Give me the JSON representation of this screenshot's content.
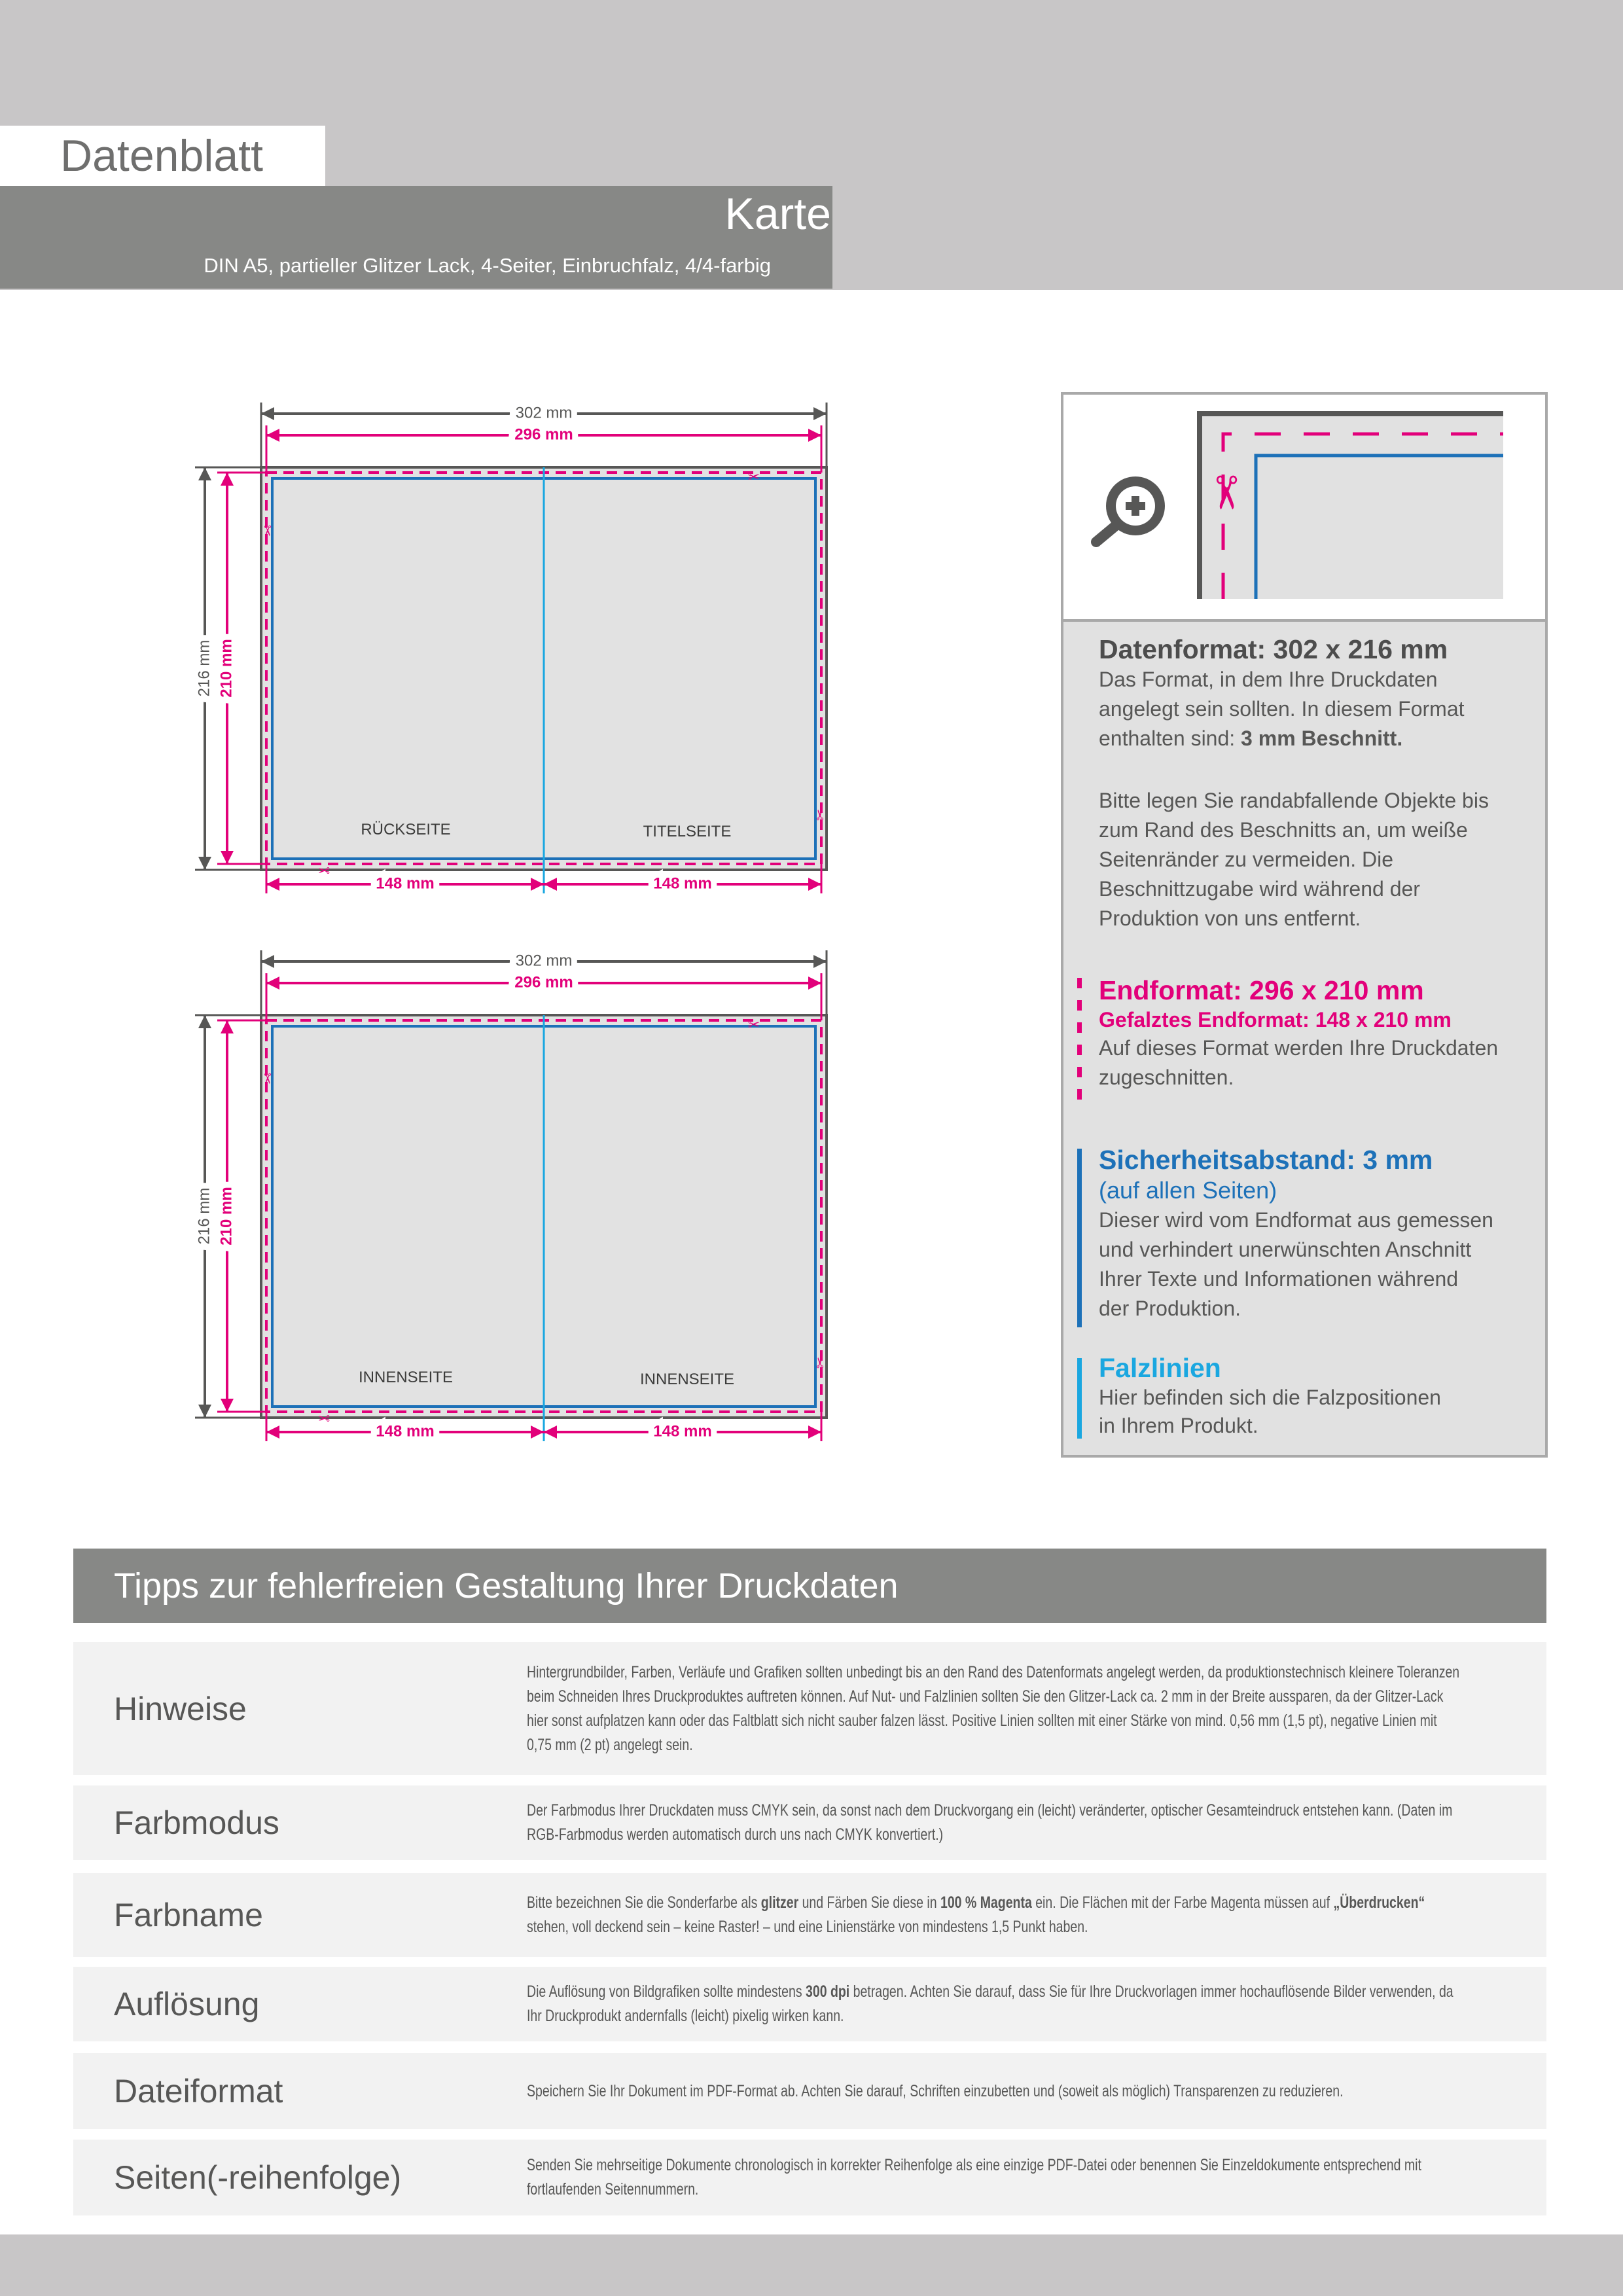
{
  "header": {
    "title": "Datenblatt",
    "product": "Karte",
    "subtitle": "DIN A5, partieller Glitzer Lack, 4-Seiter, Einbruchfalz, 4/4-farbig"
  },
  "colors": {
    "magenta": "#e2007a",
    "blue": "#1d71b8",
    "cyan": "#1aa7e0",
    "gray": "#575756",
    "band": "#878886"
  },
  "diagrams": [
    {
      "data_width": "302 mm",
      "end_width": "296 mm",
      "data_height": "216 mm",
      "end_height": "210 mm",
      "half_widths": [
        "148 mm",
        "148 mm"
      ],
      "pages": [
        "RÜCKSEITE",
        "TITELSEITE"
      ]
    },
    {
      "data_width": "302 mm",
      "end_width": "296 mm",
      "data_height": "216 mm",
      "end_height": "210 mm",
      "half_widths": [
        "148 mm",
        "148 mm"
      ],
      "pages": [
        "INNENSEITE",
        "INNENSEITE"
      ]
    }
  ],
  "info_panel": {
    "icons": [
      "zoom-in-icon",
      "scissors-icon"
    ],
    "datenformat": {
      "heading": "Datenformat: 302 x 216 mm",
      "lines": [
        "Das Format, in dem Ihre Druckdaten",
        "angelegt sein sollten. In diesem Format"
      ],
      "last_line_prefix": "enthalten sind: ",
      "last_line_bold": "3 mm Beschnitt.",
      "bleed_lines": [
        "Bitte legen Sie randabfallende Objekte bis",
        "zum Rand des Beschnitts an, um weiße",
        "Seitenränder zu vermeiden. Die",
        "Beschnittzugabe wird während der",
        "Produktion von uns entfernt."
      ]
    },
    "endformat": {
      "heading": "Endformat: 296 x 210 mm",
      "subheading": "Gefalztes Endformat: 148 x 210 mm",
      "lines": [
        "Auf dieses Format werden Ihre Druckdaten",
        "zugeschnitten."
      ]
    },
    "sicherheit": {
      "heading": "Sicherheitsabstand: 3 mm",
      "subheading": "(auf allen Seiten)",
      "lines": [
        "Dieser wird vom Endformat aus gemessen",
        "und verhindert unerwünschten Anschnitt",
        "Ihrer Texte und Informationen während",
        "der Produktion."
      ]
    },
    "falz": {
      "heading": "Falzlinien",
      "lines": [
        "Hier befinden sich die Falzpositionen",
        "in Ihrem Produkt."
      ]
    }
  },
  "tips": {
    "title": "Tipps zur fehlerfreien Gestaltung Ihrer Druckdaten",
    "rows": [
      {
        "label": "Hinweise",
        "body": [
          {
            "t": "Hintergrundbilder, Farben, Verläufe und Grafiken sollten unbedingt bis an den Rand des Datenformats angelegt werden, da produktionstechnisch kleinere Toleranzen beim Schneiden Ihres Druckproduktes auftreten können. Auf Nut- und Falzlinien sollten Sie den Glitzer-Lack ca. 2 mm in der Breite aussparen, da der Glitzer-Lack hier sonst aufplatzen kann oder das Faltblatt sich nicht sauber falzen lässt. Positive Linien sollten mit einer Stärke von mind. 0,56 mm (1,5 pt), negative Linien mit 0,75 mm (2 pt) angelegt sein."
          }
        ]
      },
      {
        "label": "Farbmodus",
        "body": [
          {
            "t": "Der Farbmodus Ihrer Druckdaten muss CMYK sein, da sonst nach dem Druckvorgang ein (leicht) veränderter, optischer Gesamteindruck entstehen kann. (Daten im RGB-Farbmodus werden automatisch durch uns nach CMYK konvertiert.)"
          }
        ]
      },
      {
        "label": "Farbname",
        "body": [
          {
            "t": "Bitte bezeichnen Sie die Sonderfarbe als "
          },
          {
            "t": "glitzer",
            "b": true
          },
          {
            "t": " und Färben Sie diese in "
          },
          {
            "t": "100 % Magenta",
            "b": true
          },
          {
            "t": " ein. Die Flächen mit der Farbe Magenta müssen auf "
          },
          {
            "t": "„Überdrucken“",
            "b": true
          },
          {
            "t": " stehen, voll deckend sein – keine Raster! – und eine Linienstärke von mindestens 1,5 Punkt haben."
          }
        ]
      },
      {
        "label": "Auflösung",
        "body": [
          {
            "t": "Die Auflösung von Bildgrafiken sollte mindestens "
          },
          {
            "t": "300 dpi",
            "b": true
          },
          {
            "t": " betragen. Achten Sie darauf, dass Sie für Ihre Druckvorlagen immer hochauflösende Bilder verwenden, da Ihr Druckprodukt andernfalls (leicht) pixelig wirken kann."
          }
        ]
      },
      {
        "label": "Dateiformat",
        "body": [
          {
            "t": "Speichern Sie Ihr Dokument im PDF-Format ab. Achten Sie darauf, Schriften einzubetten und (soweit als möglich) Transparenzen zu reduzieren."
          }
        ]
      },
      {
        "label": "Seiten(-reihenfolge)",
        "body": [
          {
            "t": "Senden Sie mehrseitige Dokumente chronologisch in korrekter Reihenfolge als eine einzige PDF-Datei oder benennen Sie Einzeldokumente entsprechend mit fortlaufenden Seitennummern."
          }
        ]
      }
    ]
  }
}
